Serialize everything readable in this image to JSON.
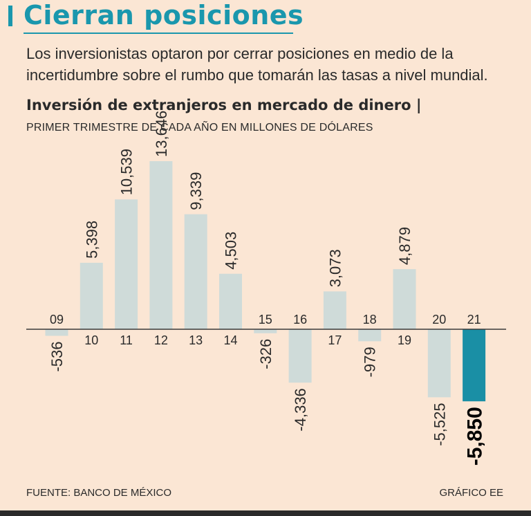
{
  "header": {
    "title": "Cierran posiciones",
    "lede": "Los inversionistas optaron por cerrar posiciones en medio de la incertidumbre sobre el rumbo que tomarán las tasas a nivel mundial."
  },
  "chart_data": {
    "type": "bar",
    "title": "Inversión de extranjeros en mercado de dinero |",
    "subtitle": "PRIMER TRIMESTRE DE CADA AÑO EN MILLONES DE DÓLARES",
    "categories": [
      "09",
      "10",
      "11",
      "12",
      "13",
      "14",
      "15",
      "16",
      "17",
      "18",
      "19",
      "20",
      "21"
    ],
    "values": [
      -536,
      5398,
      10539,
      13646,
      9339,
      4503,
      -326,
      -4336,
      3073,
      -979,
      4879,
      -5525,
      -5850
    ],
    "value_labels": [
      "-536",
      "5,398",
      "10,539",
      "13,646",
      "9,339",
      "4,503",
      "-326",
      "-4,336",
      "3,073",
      "-979",
      "4,879",
      "-5,525",
      "-5,850"
    ],
    "highlight_index": 12,
    "ylim": [
      -7000,
      14000
    ],
    "xlabel": "",
    "ylabel": "",
    "colors": {
      "bar": "#cfdbd9",
      "highlight": "#1a8fa5",
      "axis": "#3a3a3a",
      "text": "#2a2a2a"
    }
  },
  "footer": {
    "source": "FUENTE: BANCO DE MÉXICO",
    "credit": "GRÁFICO EE"
  }
}
